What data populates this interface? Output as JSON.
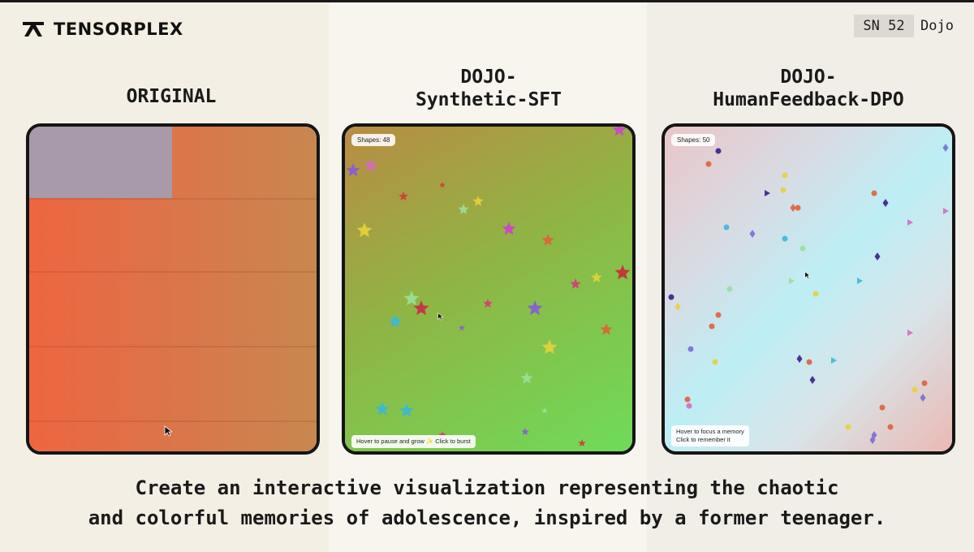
{
  "brand": {
    "name": "TENSORPLEX"
  },
  "header": {
    "badge": "SN 52",
    "tag": "Dojo"
  },
  "columns": [
    {
      "title_line1": "ORIGINAL",
      "title_line2": ""
    },
    {
      "title_line1": "DOJO-",
      "title_line2": "Synthetic-SFT"
    },
    {
      "title_line1": "DOJO-",
      "title_line2": "HumanFeedback-DPO"
    }
  ],
  "panels": {
    "sft": {
      "counter": "Shapes: 48",
      "hint": "Hover to pause and grow ✨ Click to burst"
    },
    "dpo": {
      "counter": "Shapes: 50",
      "hint_line1": "Hover to focus a memory",
      "hint_line2": "Click to remember it"
    }
  },
  "caption": {
    "line1": "Create an interactive visualization representing the chaotic",
    "line2": "and colorful memories of adolescence, inspired by a former teenager."
  },
  "colors": {
    "background": "#f6f2ea",
    "frame": "#151515",
    "badge_bg": "#ddd9d2"
  }
}
